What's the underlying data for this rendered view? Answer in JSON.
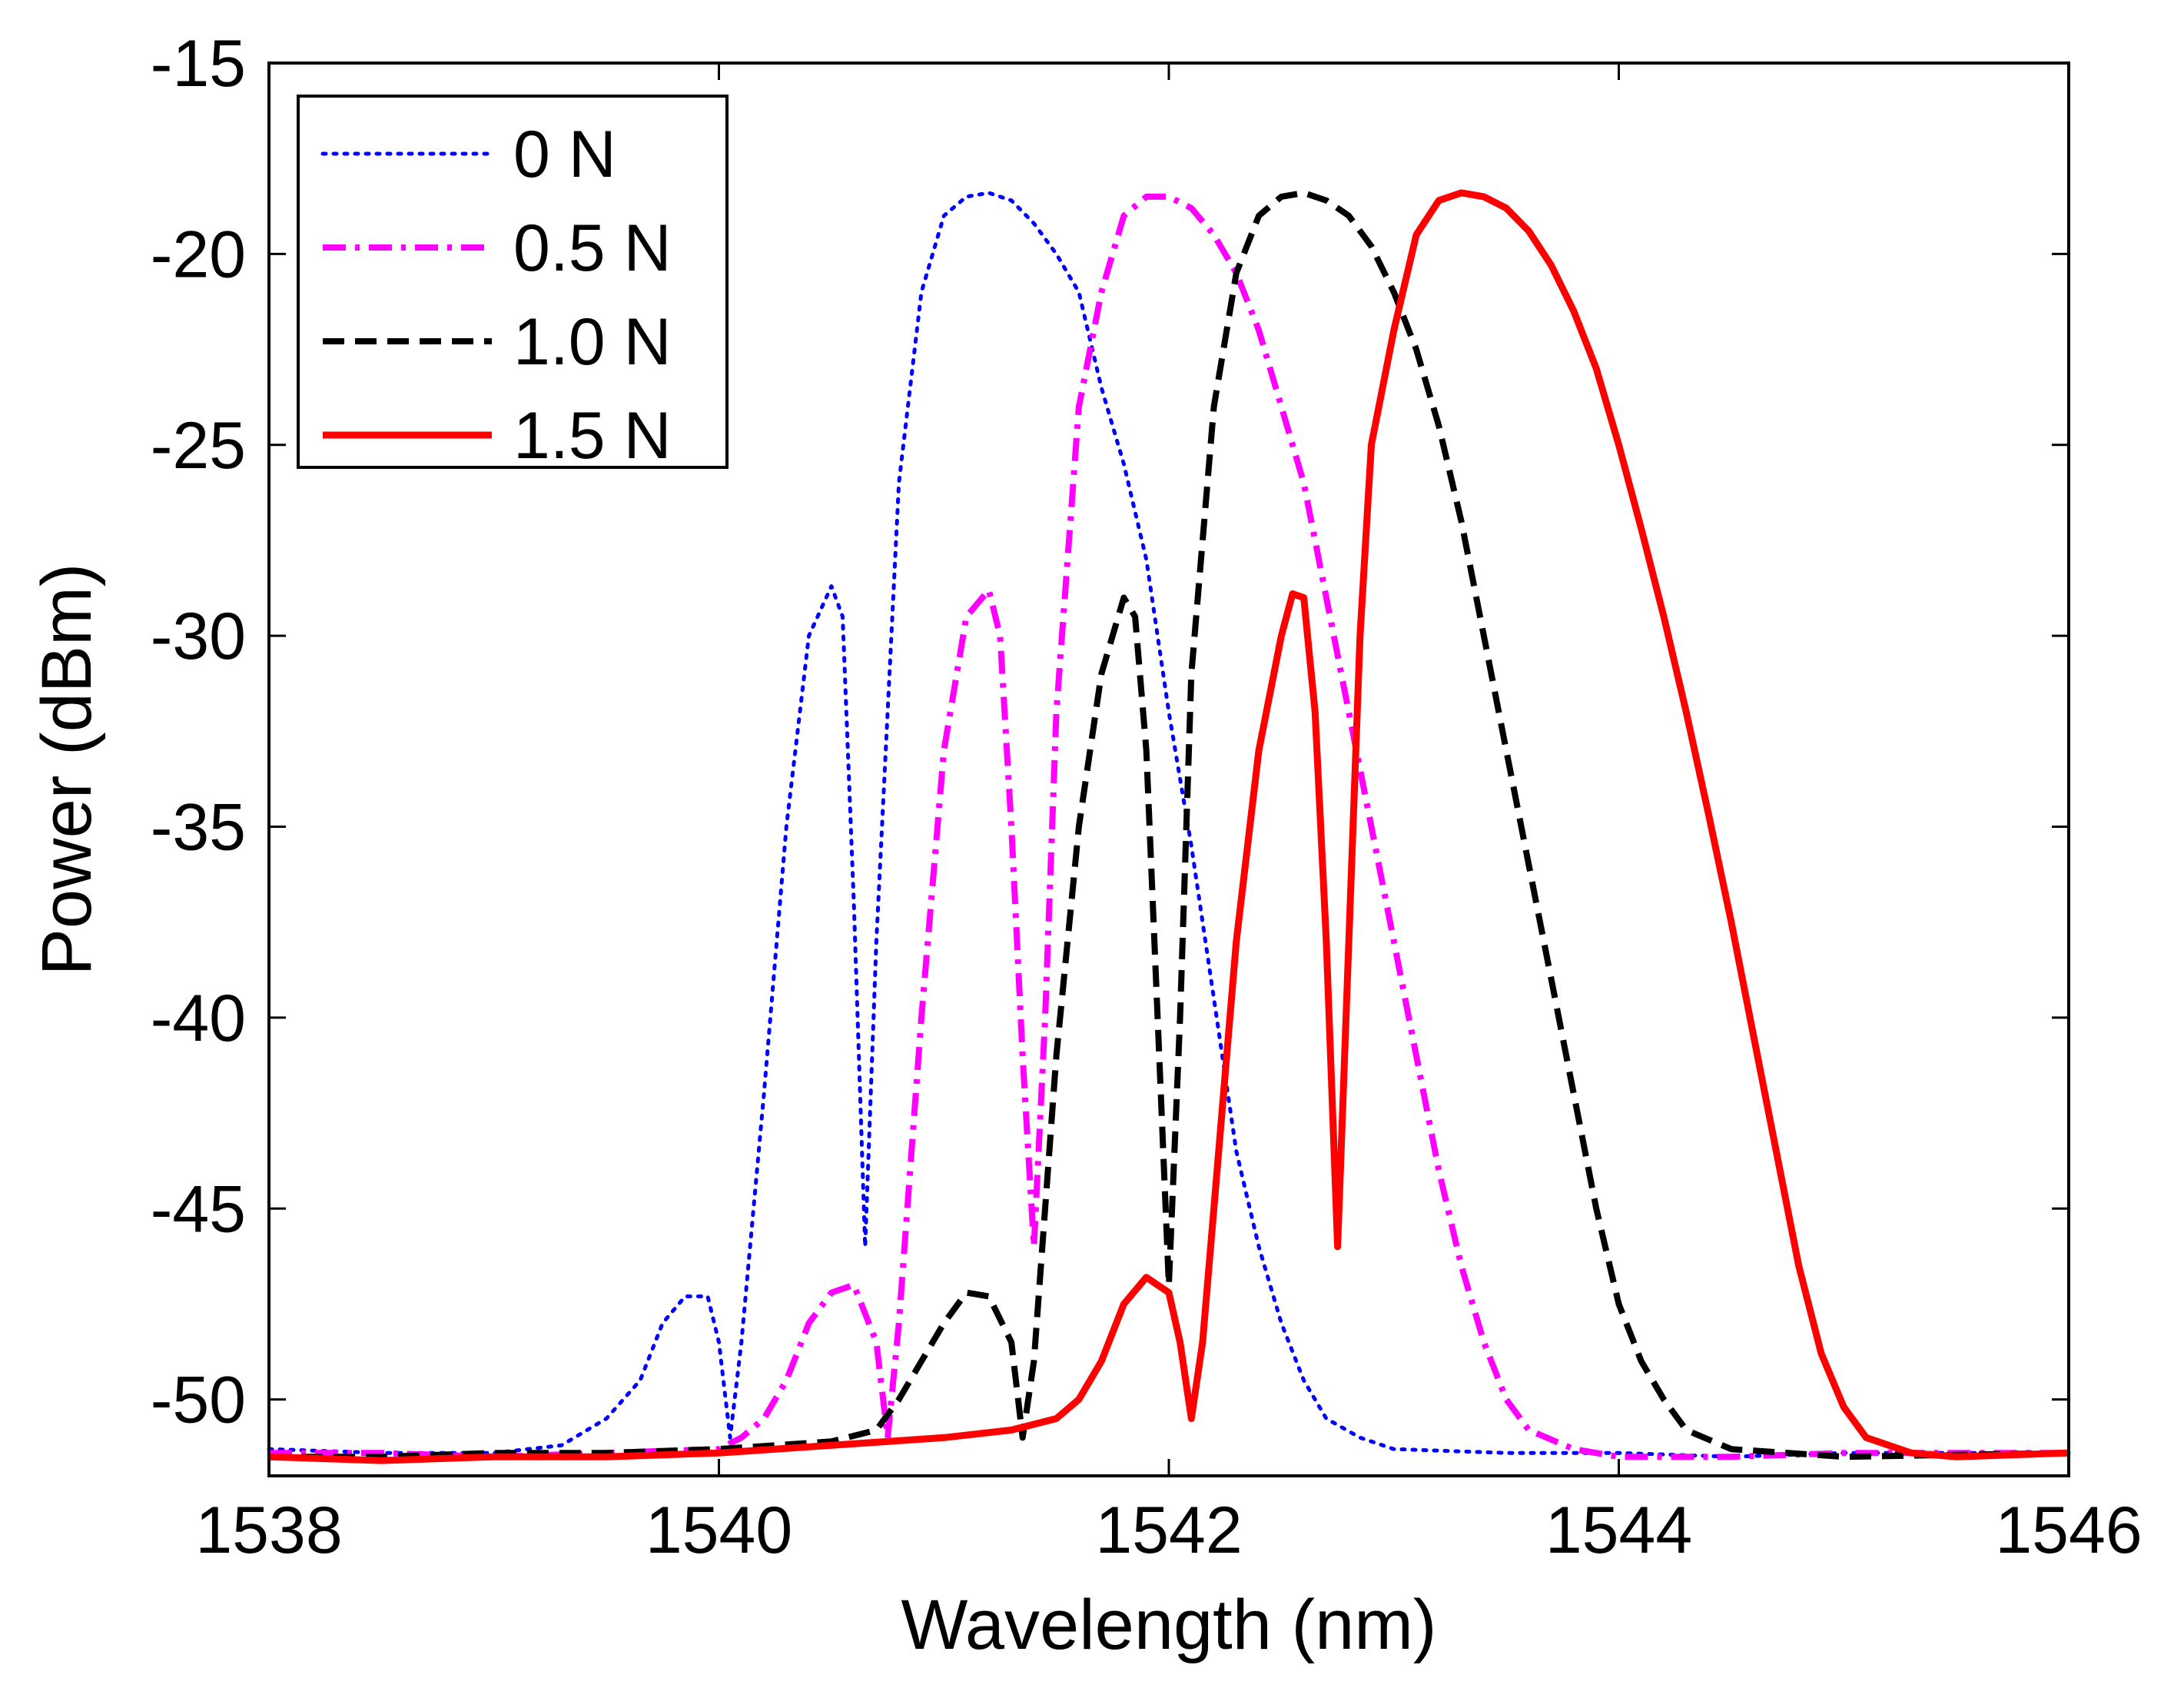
{
  "chart_data": {
    "type": "line",
    "title": "",
    "xlabel": "Wavelength (nm)",
    "ylabel": "Power (dBm)",
    "xlim": [
      1538,
      1546
    ],
    "ylim": [
      -52,
      -15
    ],
    "xticks": [
      1538,
      1540,
      1542,
      1544,
      1546
    ],
    "yticks": [
      -15,
      -20,
      -25,
      -30,
      -35,
      -40,
      -45,
      -50
    ],
    "legend_position": "top-left",
    "series": [
      {
        "name": "0 N",
        "color": "#0000ff",
        "style": "dotted",
        "points": [
          [
            1538.0,
            -51.3
          ],
          [
            1538.5,
            -51.4
          ],
          [
            1539.0,
            -51.4
          ],
          [
            1539.3,
            -51.2
          ],
          [
            1539.5,
            -50.5
          ],
          [
            1539.65,
            -49.5
          ],
          [
            1539.75,
            -48.0
          ],
          [
            1539.85,
            -47.3
          ],
          [
            1539.95,
            -47.3
          ],
          [
            1540.0,
            -48.5
          ],
          [
            1540.05,
            -51.0
          ],
          [
            1540.1,
            -48.5
          ],
          [
            1540.2,
            -42.0
          ],
          [
            1540.3,
            -35.0
          ],
          [
            1540.4,
            -30.0
          ],
          [
            1540.5,
            -28.7
          ],
          [
            1540.55,
            -29.5
          ],
          [
            1540.6,
            -37.0
          ],
          [
            1540.65,
            -46.0
          ],
          [
            1540.7,
            -38.0
          ],
          [
            1540.8,
            -26.0
          ],
          [
            1540.9,
            -21.0
          ],
          [
            1541.0,
            -19.0
          ],
          [
            1541.1,
            -18.5
          ],
          [
            1541.2,
            -18.4
          ],
          [
            1541.3,
            -18.6
          ],
          [
            1541.4,
            -19.2
          ],
          [
            1541.5,
            -20.0
          ],
          [
            1541.6,
            -21.0
          ],
          [
            1541.7,
            -23.5
          ],
          [
            1541.8,
            -25.5
          ],
          [
            1541.9,
            -28.0
          ],
          [
            1542.0,
            -32.0
          ],
          [
            1542.1,
            -35.5
          ],
          [
            1542.2,
            -39.5
          ],
          [
            1542.3,
            -43.5
          ],
          [
            1542.4,
            -46.0
          ],
          [
            1542.5,
            -48.0
          ],
          [
            1542.6,
            -49.5
          ],
          [
            1542.7,
            -50.5
          ],
          [
            1542.85,
            -51.0
          ],
          [
            1543.0,
            -51.3
          ],
          [
            1543.5,
            -51.4
          ],
          [
            1544.0,
            -51.4
          ],
          [
            1544.5,
            -51.5
          ],
          [
            1545.0,
            -51.4
          ],
          [
            1546.0,
            -51.4
          ]
        ]
      },
      {
        "name": "0.5 N",
        "color": "#ff00ff",
        "style": "dashdot",
        "points": [
          [
            1538.0,
            -51.4
          ],
          [
            1538.5,
            -51.4
          ],
          [
            1539.0,
            -51.5
          ],
          [
            1539.5,
            -51.4
          ],
          [
            1540.0,
            -51.3
          ],
          [
            1540.1,
            -51.0
          ],
          [
            1540.2,
            -50.5
          ],
          [
            1540.3,
            -49.5
          ],
          [
            1540.4,
            -48.0
          ],
          [
            1540.5,
            -47.2
          ],
          [
            1540.6,
            -47.0
          ],
          [
            1540.7,
            -48.5
          ],
          [
            1540.75,
            -51.0
          ],
          [
            1540.8,
            -48.0
          ],
          [
            1540.9,
            -40.0
          ],
          [
            1541.0,
            -33.0
          ],
          [
            1541.1,
            -29.5
          ],
          [
            1541.2,
            -28.8
          ],
          [
            1541.25,
            -30.0
          ],
          [
            1541.3,
            -35.0
          ],
          [
            1541.35,
            -41.0
          ],
          [
            1541.4,
            -46.0
          ],
          [
            1541.45,
            -40.0
          ],
          [
            1541.5,
            -32.0
          ],
          [
            1541.6,
            -24.0
          ],
          [
            1541.7,
            -21.0
          ],
          [
            1541.8,
            -19.0
          ],
          [
            1541.9,
            -18.5
          ],
          [
            1542.0,
            -18.5
          ],
          [
            1542.1,
            -18.8
          ],
          [
            1542.2,
            -19.5
          ],
          [
            1542.3,
            -20.5
          ],
          [
            1542.4,
            -22.0
          ],
          [
            1542.5,
            -24.0
          ],
          [
            1542.6,
            -26.0
          ],
          [
            1542.7,
            -29.0
          ],
          [
            1542.8,
            -32.0
          ],
          [
            1542.9,
            -35.0
          ],
          [
            1543.0,
            -38.0
          ],
          [
            1543.1,
            -41.0
          ],
          [
            1543.2,
            -44.0
          ],
          [
            1543.3,
            -46.5
          ],
          [
            1543.4,
            -48.5
          ],
          [
            1543.5,
            -50.0
          ],
          [
            1543.6,
            -50.8
          ],
          [
            1543.8,
            -51.3
          ],
          [
            1544.0,
            -51.5
          ],
          [
            1544.5,
            -51.5
          ],
          [
            1545.0,
            -51.4
          ],
          [
            1546.0,
            -51.4
          ]
        ]
      },
      {
        "name": "1.0 N",
        "color": "#000000",
        "style": "dashed",
        "points": [
          [
            1538.0,
            -51.5
          ],
          [
            1538.5,
            -51.5
          ],
          [
            1539.0,
            -51.4
          ],
          [
            1539.5,
            -51.4
          ],
          [
            1540.0,
            -51.3
          ],
          [
            1540.5,
            -51.1
          ],
          [
            1540.7,
            -50.8
          ],
          [
            1540.8,
            -50.0
          ],
          [
            1540.9,
            -49.0
          ],
          [
            1541.0,
            -48.0
          ],
          [
            1541.1,
            -47.2
          ],
          [
            1541.2,
            -47.3
          ],
          [
            1541.3,
            -48.5
          ],
          [
            1541.35,
            -51.0
          ],
          [
            1541.4,
            -49.0
          ],
          [
            1541.45,
            -45.0
          ],
          [
            1541.5,
            -41.0
          ],
          [
            1541.6,
            -35.0
          ],
          [
            1541.7,
            -31.0
          ],
          [
            1541.8,
            -29.0
          ],
          [
            1541.85,
            -29.5
          ],
          [
            1541.9,
            -33.0
          ],
          [
            1541.95,
            -40.0
          ],
          [
            1542.0,
            -47.0
          ],
          [
            1542.05,
            -40.0
          ],
          [
            1542.1,
            -31.0
          ],
          [
            1542.2,
            -24.0
          ],
          [
            1542.3,
            -20.5
          ],
          [
            1542.4,
            -19.0
          ],
          [
            1542.5,
            -18.5
          ],
          [
            1542.6,
            -18.4
          ],
          [
            1542.7,
            -18.6
          ],
          [
            1542.8,
            -19.0
          ],
          [
            1542.9,
            -19.8
          ],
          [
            1543.0,
            -21.0
          ],
          [
            1543.1,
            -22.5
          ],
          [
            1543.2,
            -24.5
          ],
          [
            1543.3,
            -27.0
          ],
          [
            1543.4,
            -30.0
          ],
          [
            1543.5,
            -33.0
          ],
          [
            1543.6,
            -36.0
          ],
          [
            1543.7,
            -39.0
          ],
          [
            1543.8,
            -42.0
          ],
          [
            1543.9,
            -45.0
          ],
          [
            1544.0,
            -47.5
          ],
          [
            1544.1,
            -49.0
          ],
          [
            1544.2,
            -50.0
          ],
          [
            1544.3,
            -50.8
          ],
          [
            1544.5,
            -51.3
          ],
          [
            1545.0,
            -51.5
          ],
          [
            1546.0,
            -51.4
          ]
        ]
      },
      {
        "name": "1.5 N",
        "color": "#ff0000",
        "style": "solid",
        "points": [
          [
            1538.0,
            -51.5
          ],
          [
            1538.5,
            -51.6
          ],
          [
            1539.0,
            -51.5
          ],
          [
            1539.5,
            -51.5
          ],
          [
            1540.0,
            -51.4
          ],
          [
            1540.5,
            -51.2
          ],
          [
            1541.0,
            -51.0
          ],
          [
            1541.3,
            -50.8
          ],
          [
            1541.5,
            -50.5
          ],
          [
            1541.6,
            -50.0
          ],
          [
            1541.7,
            -49.0
          ],
          [
            1541.8,
            -47.5
          ],
          [
            1541.9,
            -46.8
          ],
          [
            1542.0,
            -47.2
          ],
          [
            1542.05,
            -48.5
          ],
          [
            1542.1,
            -50.5
          ],
          [
            1542.15,
            -48.5
          ],
          [
            1542.2,
            -45.0
          ],
          [
            1542.3,
            -38.0
          ],
          [
            1542.4,
            -33.0
          ],
          [
            1542.5,
            -30.0
          ],
          [
            1542.55,
            -28.9
          ],
          [
            1542.6,
            -29.0
          ],
          [
            1542.65,
            -32.0
          ],
          [
            1542.7,
            -38.0
          ],
          [
            1542.75,
            -46.0
          ],
          [
            1542.8,
            -38.0
          ],
          [
            1542.85,
            -30.0
          ],
          [
            1542.9,
            -25.0
          ],
          [
            1543.0,
            -22.0
          ],
          [
            1543.1,
            -19.5
          ],
          [
            1543.2,
            -18.6
          ],
          [
            1543.3,
            -18.4
          ],
          [
            1543.4,
            -18.5
          ],
          [
            1543.5,
            -18.8
          ],
          [
            1543.6,
            -19.4
          ],
          [
            1543.7,
            -20.3
          ],
          [
            1543.8,
            -21.5
          ],
          [
            1543.9,
            -23.0
          ],
          [
            1544.0,
            -25.0
          ],
          [
            1544.1,
            -27.2
          ],
          [
            1544.2,
            -29.5
          ],
          [
            1544.3,
            -32.0
          ],
          [
            1544.4,
            -34.7
          ],
          [
            1544.5,
            -37.5
          ],
          [
            1544.6,
            -40.5
          ],
          [
            1544.7,
            -43.5
          ],
          [
            1544.8,
            -46.5
          ],
          [
            1544.9,
            -48.8
          ],
          [
            1545.0,
            -50.2
          ],
          [
            1545.1,
            -51.0
          ],
          [
            1545.3,
            -51.4
          ],
          [
            1545.5,
            -51.5
          ],
          [
            1546.0,
            -51.4
          ]
        ]
      }
    ]
  }
}
